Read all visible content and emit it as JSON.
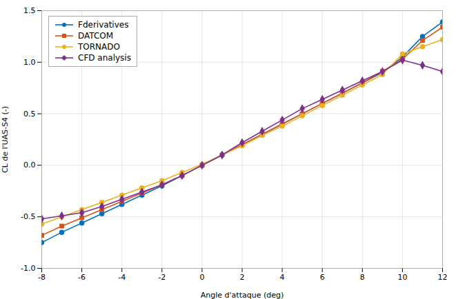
{
  "chart_data": {
    "type": "line",
    "xlabel": "Angle d'attaque (deg)",
    "ylabel": "CL de l'UAS-S4 (-)",
    "x": [
      -8,
      -7,
      -6,
      -5,
      -4,
      -3,
      -2,
      -1,
      0,
      1,
      2,
      3,
      4,
      5,
      6,
      7,
      8,
      9,
      10,
      11,
      12
    ],
    "series": [
      {
        "name": "Fderivatives",
        "color": "#0072bd",
        "marker": "circle",
        "values": [
          -0.75,
          -0.65,
          -0.56,
          -0.47,
          -0.38,
          -0.29,
          -0.2,
          -0.1,
          0.0,
          0.1,
          0.2,
          0.3,
          0.4,
          0.5,
          0.6,
          0.7,
          0.8,
          0.9,
          1.05,
          1.25,
          1.39
        ]
      },
      {
        "name": "DATCOM",
        "color": "#d95319",
        "marker": "square",
        "values": [
          -0.68,
          -0.59,
          -0.51,
          -0.43,
          -0.35,
          -0.27,
          -0.19,
          -0.1,
          0.0,
          0.1,
          0.2,
          0.3,
          0.4,
          0.5,
          0.6,
          0.7,
          0.8,
          0.91,
          1.03,
          1.21,
          1.34
        ]
      },
      {
        "name": "TORNADO",
        "color": "#edb120",
        "marker": "circle",
        "values": [
          -0.57,
          -0.5,
          -0.43,
          -0.36,
          -0.29,
          -0.22,
          -0.15,
          -0.07,
          0.01,
          0.1,
          0.19,
          0.29,
          0.38,
          0.48,
          0.58,
          0.68,
          0.78,
          0.88,
          1.08,
          1.15,
          1.22
        ]
      },
      {
        "name": "CFD analysis",
        "color": "#7e2f8e",
        "marker": "diamond",
        "values": [
          -0.52,
          -0.49,
          -0.46,
          -0.4,
          -0.33,
          -0.26,
          -0.19,
          -0.1,
          0.0,
          0.1,
          0.22,
          0.33,
          0.44,
          0.55,
          0.64,
          0.73,
          0.82,
          0.91,
          1.02,
          0.97,
          0.91
        ]
      }
    ],
    "xlim": [
      -8,
      12
    ],
    "ylim": [
      -1.0,
      1.5
    ],
    "xticks": [
      -8,
      -6,
      -4,
      -2,
      0,
      2,
      4,
      6,
      8,
      10,
      12
    ],
    "yticks": [
      {
        "value": -1.0,
        "label": "-1.0"
      },
      -0.5,
      {
        "value": 0,
        "label": "0.0"
      },
      0.5,
      {
        "value": 1.0,
        "label": "1.0"
      },
      1.5
    ],
    "grid": true,
    "legend": "upper left"
  }
}
